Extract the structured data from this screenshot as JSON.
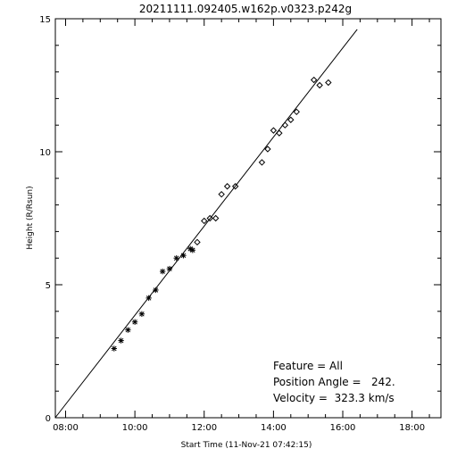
{
  "chart_data": {
    "type": "scatter",
    "title": "20211111.092405.w162p.v0323.p242g",
    "xlabel": "Start Time (11-Nov-21 07:42:15)",
    "ylabel": "Height (R/Rsun)",
    "xlim": [
      "07:42:15",
      "18:50:00"
    ],
    "ylim": [
      0,
      15
    ],
    "x_ticks": [
      "08:00",
      "10:00",
      "12:00",
      "14:00",
      "16:00",
      "18:00"
    ],
    "y_ticks": [
      "0",
      "5",
      "10",
      "15"
    ],
    "grid": false,
    "annotations": [
      "Feature = All",
      "Position Angle =   242.",
      "Velocity =  323.3 km/s"
    ],
    "series": [
      {
        "marker": "asterisk",
        "x": [
          "09:24",
          "09:36",
          "09:48",
          "10:00",
          "10:12",
          "10:24",
          "10:36",
          "10:48",
          "11:00",
          "11:12",
          "11:24",
          "11:36",
          "11:40"
        ],
        "y": [
          2.6,
          2.9,
          3.3,
          3.6,
          3.9,
          4.5,
          4.8,
          5.5,
          5.6,
          6.0,
          6.1,
          6.35,
          6.3
        ]
      },
      {
        "marker": "diamond",
        "x": [
          "11:48",
          "12:00",
          "12:10",
          "12:20",
          "12:30",
          "12:40",
          "12:54",
          "13:40",
          "13:50",
          "14:00",
          "14:10",
          "14:20",
          "14:30",
          "14:40",
          "15:10",
          "15:20",
          "15:35"
        ],
        "y": [
          6.6,
          7.4,
          7.5,
          7.5,
          8.4,
          8.7,
          8.7,
          9.6,
          10.1,
          10.8,
          10.7,
          11.0,
          11.2,
          11.5,
          12.7,
          12.5,
          12.6
        ]
      },
      {
        "name": "fit",
        "style": "line",
        "x": [
          "07:42",
          "16:25"
        ],
        "y": [
          0,
          14.6
        ]
      }
    ]
  }
}
